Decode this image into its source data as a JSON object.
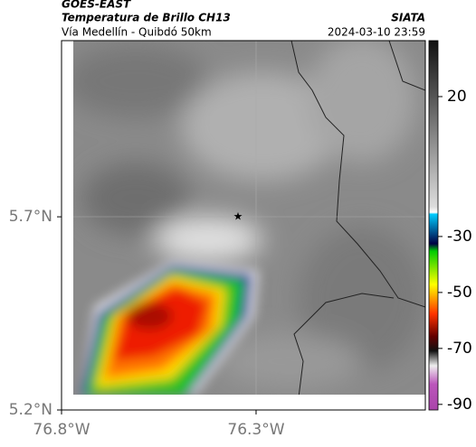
{
  "header": {
    "source": "GOES-EAST",
    "title": "Temperatura de Brillo CH13",
    "subtitle": "Vía Medellín - Quibdó 50km",
    "brand": "SIATA",
    "timestamp": "2024-03-10 23:59"
  },
  "map": {
    "lonlim": [
      -76.8,
      -75.865
    ],
    "latlim": [
      5.2,
      6.156
    ],
    "lon_ticks": [
      {
        "value": -76.8,
        "label": "76.8°W"
      },
      {
        "value": -76.3,
        "label": "76.3°W"
      }
    ],
    "lat_ticks": [
      {
        "value": 5.7,
        "label": "5.7°N"
      },
      {
        "value": 5.2,
        "label": "5.2°N"
      }
    ]
  },
  "colorbar": {
    "lim": [
      40,
      -92
    ],
    "ticks": [
      20,
      -30,
      -50,
      -70,
      -90
    ]
  }
}
